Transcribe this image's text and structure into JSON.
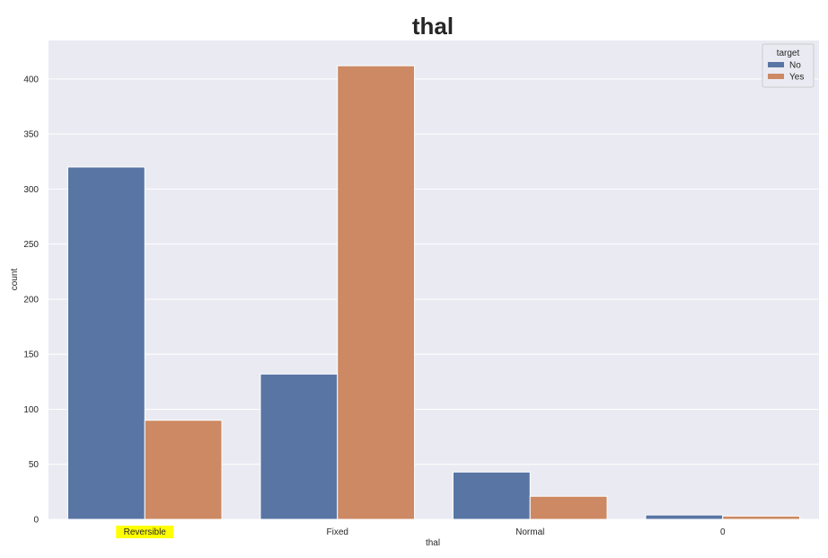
{
  "chart_data": {
    "type": "bar",
    "title": "thal",
    "xlabel": "thal",
    "ylabel": "count",
    "categories": [
      "Reversible",
      "Fixed",
      "Normal",
      "0"
    ],
    "highlighted_category": "Reversible",
    "highlight_color": "#ffff00",
    "series": [
      {
        "name": "No",
        "values": [
          320,
          132,
          43,
          4
        ],
        "color": "#5875a4"
      },
      {
        "name": "Yes",
        "values": [
          90,
          412,
          21,
          3
        ],
        "color": "#cc8963"
      }
    ],
    "ylim": [
      0,
      435
    ],
    "yticks": [
      0,
      50,
      100,
      150,
      200,
      250,
      300,
      350,
      400
    ],
    "grid": true,
    "background_color": "#eaeaf2",
    "legend": {
      "title": "target",
      "placement": "top-right"
    }
  }
}
